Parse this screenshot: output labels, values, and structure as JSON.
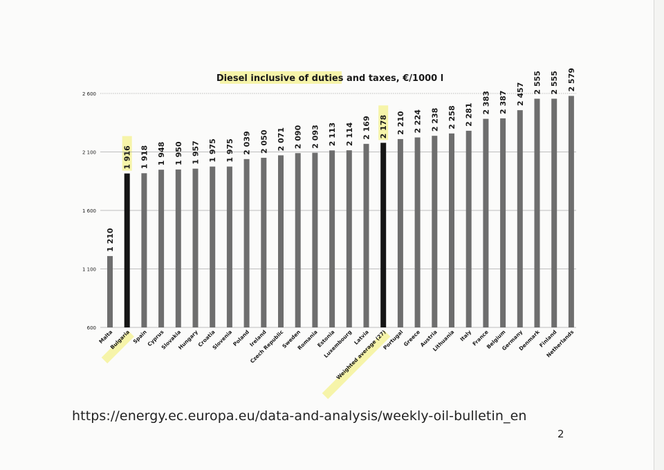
{
  "chart_data": {
    "type": "bar",
    "title": "Diesel inclusive of duties and taxes, €/1000 l",
    "categories": [
      "Malta",
      "Bulgaria",
      "Spain",
      "Cyprus",
      "Slovakia",
      "Hungary",
      "Croatia",
      "Slovenia",
      "Poland",
      "Ireland",
      "Czech Republic",
      "Sweden",
      "Romania",
      "Estonia",
      "Luxembourg",
      "Latvia",
      "Weighted average (27)",
      "Portugal",
      "Greece",
      "Austria",
      "Lithuania",
      "Italy",
      "France",
      "Belgium",
      "Germany",
      "Denmark",
      "Finland",
      "Netherlands"
    ],
    "values": [
      1210,
      1916,
      1918,
      1948,
      1950,
      1957,
      1975,
      1975,
      2039,
      2050,
      2071,
      2090,
      2093,
      2113,
      2114,
      2169,
      2178,
      2210,
      2224,
      2238,
      2258,
      2281,
      2383,
      2387,
      2457,
      2555,
      2555,
      2579
    ],
    "value_labels": [
      "1 210",
      "1 916",
      "1 918",
      "1 948",
      "1 950",
      "1 957",
      "1 975",
      "1 975",
      "2 039",
      "2 050",
      "2 071",
      "2 090",
      "2 093",
      "2 113",
      "2 114",
      "2 169",
      "2 178",
      "2 210",
      "2 224",
      "2 238",
      "2 258",
      "2 281",
      "2 383",
      "2 387",
      "2 457",
      "2 555",
      "2 555",
      "2 579"
    ],
    "highlighted": [
      "Bulgaria",
      "Weighted average (27)"
    ],
    "ylim": [
      600,
      2600
    ],
    "yticks": [
      600,
      1100,
      1600,
      2100,
      2600
    ],
    "ytick_labels": [
      "600",
      "1 100",
      "1 600",
      "2 100",
      "2 600"
    ],
    "xlabel": "",
    "ylabel": "",
    "grid": true,
    "legend": "none",
    "colors": {
      "bar": "#6e6e6e",
      "highlight_bar": "#151515",
      "marker": "#f4f29a",
      "grid": "#a8a8a8",
      "text": "#1a1a1a"
    }
  },
  "source_url": "https://energy.ec.europa.eu/data-and-analysis/weekly-oil-bulletin_en",
  "page_number": "2"
}
